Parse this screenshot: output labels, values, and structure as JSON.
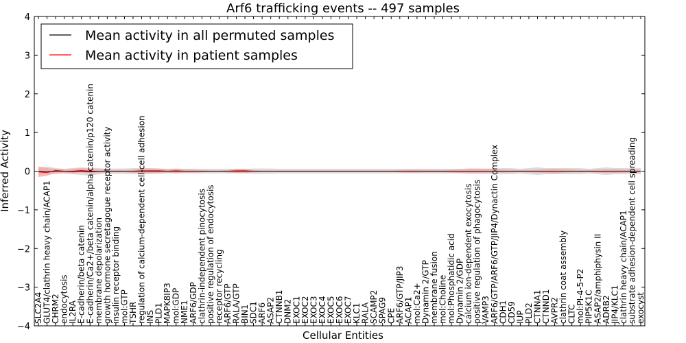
{
  "chart_data": {
    "type": "line",
    "title": "Arf6 trafficking events -- 497 samples",
    "xlabel": "Cellular Entities",
    "ylabel": "Inferred Activity",
    "ylim": [
      -4,
      4
    ],
    "yticks": [
      -4,
      -3,
      -2,
      -1,
      0,
      1,
      2,
      3,
      4
    ],
    "ytick_labels": [
      "−4",
      "−3",
      "−2",
      "−1",
      "0",
      "1",
      "2",
      "3",
      "4"
    ],
    "legend_position": "top-left",
    "categories": [
      "SLC2A4",
      "GLUT4/clathrin heavy chain/ACAP1",
      "CHRM2",
      "endocytosis",
      "IL2RA",
      "E-cadherin/beta catenin",
      "E-cadherin/Ca2+/beta catenin/alpha catenin/p120 catenin",
      "membrane depolarization",
      "growth hormone secretagogue receptor activity",
      "insulin receptor binding",
      "mol:GTP",
      "TSHR",
      "regulation of calcium-dependent cell-cell adhesion",
      "INS",
      "PLD1",
      "MAPK8IP3",
      "mol:GDP",
      "NME1",
      "ARF6/GDP",
      "clathrin-independent pinocytosis",
      "positive regulation of endocytosis",
      "receptor recycling",
      "ARF6/GTP",
      "RALA/GTP",
      "BIN1",
      "SDC1",
      "ARF6",
      "ASAP2",
      "CTNNB1",
      "DNM2",
      "EXOC1",
      "EXOC2",
      "EXOC3",
      "EXOC4",
      "EXOC5",
      "EXOC6",
      "EXOC7",
      "KLC1",
      "RALA",
      "SCAMP2",
      "SPAG9",
      "CPE",
      "ARF6/GTP/JIP3",
      "ACAP1",
      "mol:Ca2+",
      "Dynamin 2/GTP",
      "membrane fusion",
      "mol:Choline",
      "mol:Phosphatidic acid",
      "Dynamin 2/GDP",
      "calcium ion-dependent exocytosis",
      "positive regulation of phagocytosis",
      "VAMP3",
      "ARF6/GTP/ARF6/GTP/JIP4/Dynactin Complex",
      "CDH1",
      "CD59",
      "IUP",
      "PLD2",
      "CTNNA1",
      "CTNND1",
      "AVPR2",
      "clathrin coat assembly",
      "CLTC",
      "mol:PI-4-5-P2",
      "PIP5K1C",
      "ASAP2/amphiphysin II",
      "ADRB2",
      "JIP4/KLC1",
      "clathrin heavy chain/ACAP1",
      "substrate adhesion-dependent cell spreading",
      "exocyst"
    ],
    "series": [
      {
        "name": "Mean activity in all permuted samples",
        "color": "#000000",
        "values": [
          0,
          -0.02,
          0,
          0,
          -0.01,
          0,
          -0.02,
          0,
          0,
          0,
          0,
          0,
          0,
          0,
          0,
          0,
          0,
          0,
          0,
          0,
          0,
          0,
          0,
          0,
          0,
          0,
          0,
          0,
          0,
          0,
          0,
          0,
          0,
          0,
          0,
          0,
          0,
          0,
          0,
          0,
          0,
          0,
          0,
          0,
          0,
          0,
          0,
          0,
          0,
          0,
          0,
          0,
          0,
          0,
          0,
          0,
          0,
          0,
          0,
          0,
          0,
          0,
          0,
          0,
          0,
          0,
          0,
          0,
          0,
          0,
          0
        ],
        "band_lower": [
          -0.1,
          -0.06,
          -0.08,
          -0.05,
          -0.08,
          -0.1,
          -0.12,
          -0.08,
          -0.06,
          -0.07,
          -0.07,
          -0.08,
          -0.08,
          -0.08,
          -0.07,
          -0.06,
          -0.06,
          -0.06,
          -0.06,
          -0.06,
          -0.06,
          -0.06,
          -0.06,
          -0.06,
          -0.06,
          -0.07,
          -0.07,
          -0.07,
          -0.06,
          -0.06,
          -0.06,
          -0.06,
          -0.06,
          -0.06,
          -0.06,
          -0.06,
          -0.06,
          -0.06,
          -0.06,
          -0.06,
          -0.06,
          -0.06,
          -0.06,
          -0.06,
          -0.06,
          -0.06,
          -0.06,
          -0.06,
          -0.06,
          -0.06,
          -0.06,
          -0.06,
          -0.07,
          -0.07,
          -0.08,
          -0.08,
          -0.06,
          -0.08,
          -0.1,
          -0.08,
          -0.08,
          -0.08,
          -0.08,
          -0.08,
          -0.06,
          -0.08,
          -0.1,
          -0.08,
          -0.08,
          -0.08,
          -0.08
        ],
        "band_upper": [
          0.1,
          0.12,
          0.08,
          0.06,
          0.08,
          0.1,
          0.08,
          0.08,
          0.06,
          0.07,
          0.07,
          0.08,
          0.08,
          0.08,
          0.07,
          0.06,
          0.06,
          0.06,
          0.06,
          0.06,
          0.06,
          0.06,
          0.06,
          0.06,
          0.06,
          0.07,
          0.07,
          0.07,
          0.06,
          0.06,
          0.06,
          0.06,
          0.06,
          0.06,
          0.06,
          0.06,
          0.06,
          0.06,
          0.06,
          0.06,
          0.06,
          0.06,
          0.06,
          0.06,
          0.06,
          0.06,
          0.06,
          0.06,
          0.06,
          0.06,
          0.06,
          0.06,
          0.07,
          0.07,
          0.08,
          0.08,
          0.06,
          0.08,
          0.1,
          0.08,
          0.08,
          0.08,
          0.08,
          0.08,
          0.06,
          0.08,
          0.1,
          0.08,
          0.08,
          0.08,
          0.08
        ]
      },
      {
        "name": "Mean activity in patient samples",
        "color": "#ff0000",
        "values": [
          -0.02,
          -0.04,
          0.02,
          0,
          0,
          0.02,
          0,
          0,
          0,
          0,
          0,
          0,
          0.01,
          0.01,
          0.01,
          0,
          0.01,
          0,
          0,
          0,
          0,
          0,
          0,
          0.01,
          0.01,
          0,
          0,
          0,
          0,
          0,
          0,
          0,
          0,
          0,
          0,
          0,
          0,
          0,
          0,
          0,
          0,
          0,
          0,
          0,
          0,
          0,
          0,
          0,
          0,
          0,
          0,
          0,
          0,
          0,
          0,
          0,
          0,
          0,
          0,
          0,
          0,
          0,
          0,
          0,
          0,
          0,
          0,
          0,
          0,
          0,
          0
        ],
        "band_lower": [
          -0.15,
          -0.12,
          -0.05,
          -0.06,
          -0.06,
          -0.04,
          -0.06,
          -0.05,
          -0.03,
          -0.03,
          -0.03,
          -0.04,
          -0.05,
          -0.05,
          -0.05,
          -0.04,
          -0.05,
          -0.04,
          -0.04,
          -0.03,
          -0.02,
          -0.02,
          -0.03,
          -0.05,
          -0.05,
          -0.03,
          -0.02,
          -0.02,
          -0.02,
          -0.02,
          -0.02,
          -0.02,
          -0.02,
          -0.02,
          -0.02,
          -0.02,
          -0.02,
          -0.02,
          -0.02,
          -0.02,
          -0.02,
          -0.02,
          -0.03,
          -0.04,
          -0.04,
          -0.03,
          -0.03,
          -0.03,
          -0.04,
          -0.05,
          -0.06,
          -0.06,
          -0.05,
          -0.04,
          -0.04,
          -0.03,
          -0.03,
          -0.03,
          -0.04,
          -0.05,
          -0.06,
          -0.04,
          -0.03,
          -0.03,
          -0.03,
          -0.04,
          -0.05,
          -0.05,
          -0.04,
          -0.04,
          -0.04
        ],
        "band_upper": [
          0.12,
          0.08,
          0.06,
          0.05,
          0.06,
          0.08,
          0.06,
          0.05,
          0.03,
          0.03,
          0.03,
          0.04,
          0.07,
          0.07,
          0.07,
          0.05,
          0.07,
          0.05,
          0.05,
          0.03,
          0.02,
          0.02,
          0.03,
          0.06,
          0.06,
          0.03,
          0.02,
          0.02,
          0.02,
          0.02,
          0.02,
          0.02,
          0.02,
          0.02,
          0.02,
          0.02,
          0.02,
          0.02,
          0.02,
          0.02,
          0.02,
          0.02,
          0.03,
          0.04,
          0.04,
          0.03,
          0.03,
          0.03,
          0.04,
          0.05,
          0.07,
          0.07,
          0.06,
          0.05,
          0.04,
          0.03,
          0.03,
          0.03,
          0.04,
          0.05,
          0.06,
          0.05,
          0.04,
          0.03,
          0.03,
          0.04,
          0.05,
          0.05,
          0.04,
          0.04,
          0.04
        ]
      }
    ],
    "band_colors": {
      "permuted": "#d3d3d3",
      "patient": "#f4a3a3"
    }
  }
}
